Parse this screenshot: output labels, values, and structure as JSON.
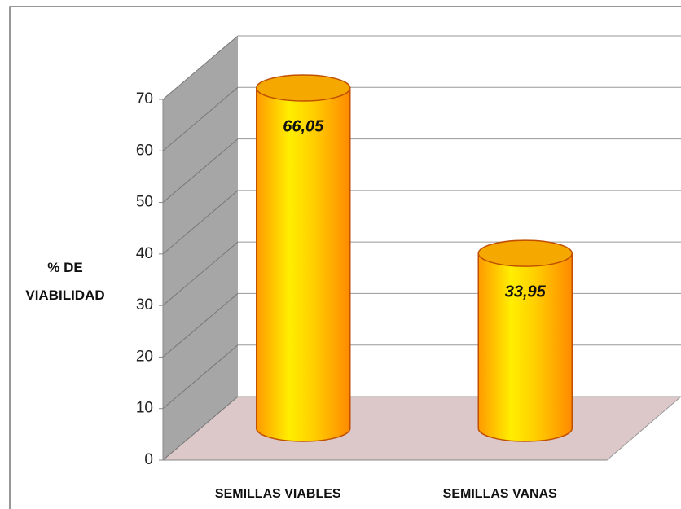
{
  "chart_data": {
    "type": "bar3d",
    "y_label": "% DE VIABILIDAD",
    "categories": [
      "SEMILLAS VIABLES",
      "SEMILLAS VANAS"
    ],
    "values": [
      66.05,
      33.95
    ],
    "value_labels": [
      "66,05",
      "33,95"
    ],
    "color": "#ffb000",
    "ylim": [
      0,
      70
    ],
    "yticks": [
      0,
      10,
      20,
      30,
      40,
      50,
      60,
      70
    ],
    "grid": true
  }
}
